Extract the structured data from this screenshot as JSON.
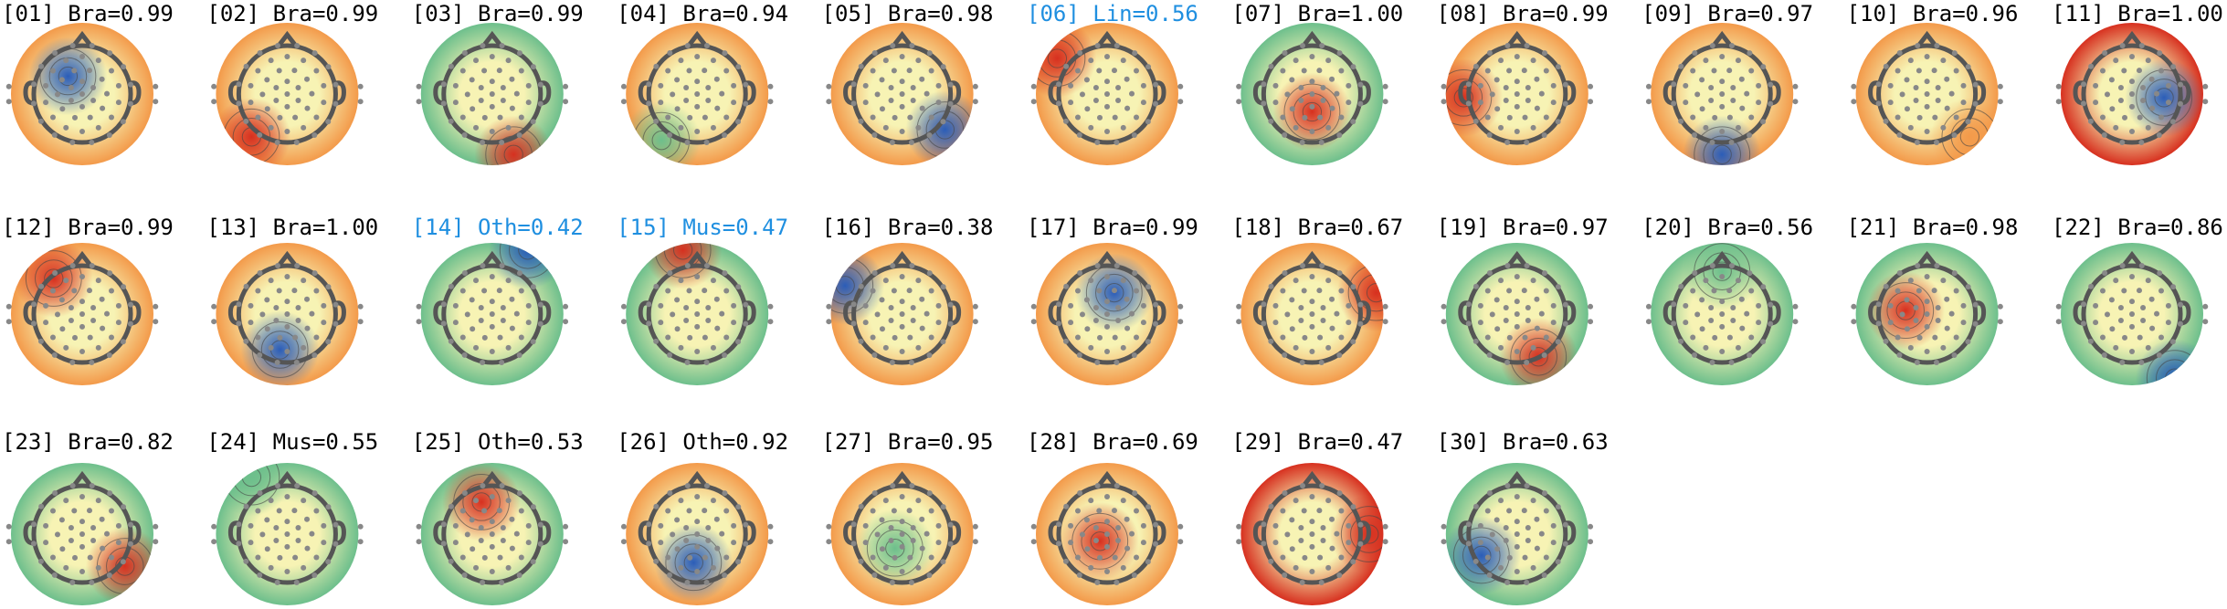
{
  "components": [
    {
      "label": "[01] Bra=0.99",
      "color": "#000000"
    },
    {
      "label": "[02] Bra=0.99",
      "color": "#000000"
    },
    {
      "label": "[03] Bra=0.99",
      "color": "#000000"
    },
    {
      "label": "[04] Bra=0.94",
      "color": "#000000"
    },
    {
      "label": "[05] Bra=0.98",
      "color": "#000000"
    },
    {
      "label": "[06] Lin=0.56",
      "color": "#1f8fe0"
    },
    {
      "label": "[07] Bra=1.00",
      "color": "#000000"
    },
    {
      "label": "[08] Bra=0.99",
      "color": "#000000"
    },
    {
      "label": "[09] Bra=0.97",
      "color": "#000000"
    },
    {
      "label": "[10] Bra=0.96",
      "color": "#000000"
    },
    {
      "label": "[11] Bra=1.00",
      "color": "#000000"
    },
    {
      "label": "[12] Bra=0.99",
      "color": "#000000"
    },
    {
      "label": "[13] Bra=1.00",
      "color": "#000000"
    },
    {
      "label": "[14] Oth=0.42",
      "color": "#1f8fe0"
    },
    {
      "label": "[15] Mus=0.47",
      "color": "#1f8fe0"
    },
    {
      "label": "[16] Bra=0.38",
      "color": "#000000"
    },
    {
      "label": "[17] Bra=0.99",
      "color": "#000000"
    },
    {
      "label": "[18] Bra=0.67",
      "color": "#000000"
    },
    {
      "label": "[19] Bra=0.97",
      "color": "#000000"
    },
    {
      "label": "[20] Bra=0.56",
      "color": "#000000"
    },
    {
      "label": "[21] Bra=0.98",
      "color": "#000000"
    },
    {
      "label": "[22] Bra=0.86",
      "color": "#000000"
    },
    {
      "label": "[23] Bra=0.82",
      "color": "#000000"
    },
    {
      "label": "[24] Mus=0.55",
      "color": "#000000"
    },
    {
      "label": "[25] Oth=0.53",
      "color": "#000000"
    },
    {
      "label": "[26] Oth=0.92",
      "color": "#000000"
    },
    {
      "label": "[27] Bra=0.95",
      "color": "#000000"
    },
    {
      "label": "[28] Bra=0.69",
      "color": "#000000"
    },
    {
      "label": "[29] Bra=0.47",
      "color": "#000000"
    },
    {
      "label": "[30] Bra=0.63",
      "color": "#000000"
    }
  ]
}
